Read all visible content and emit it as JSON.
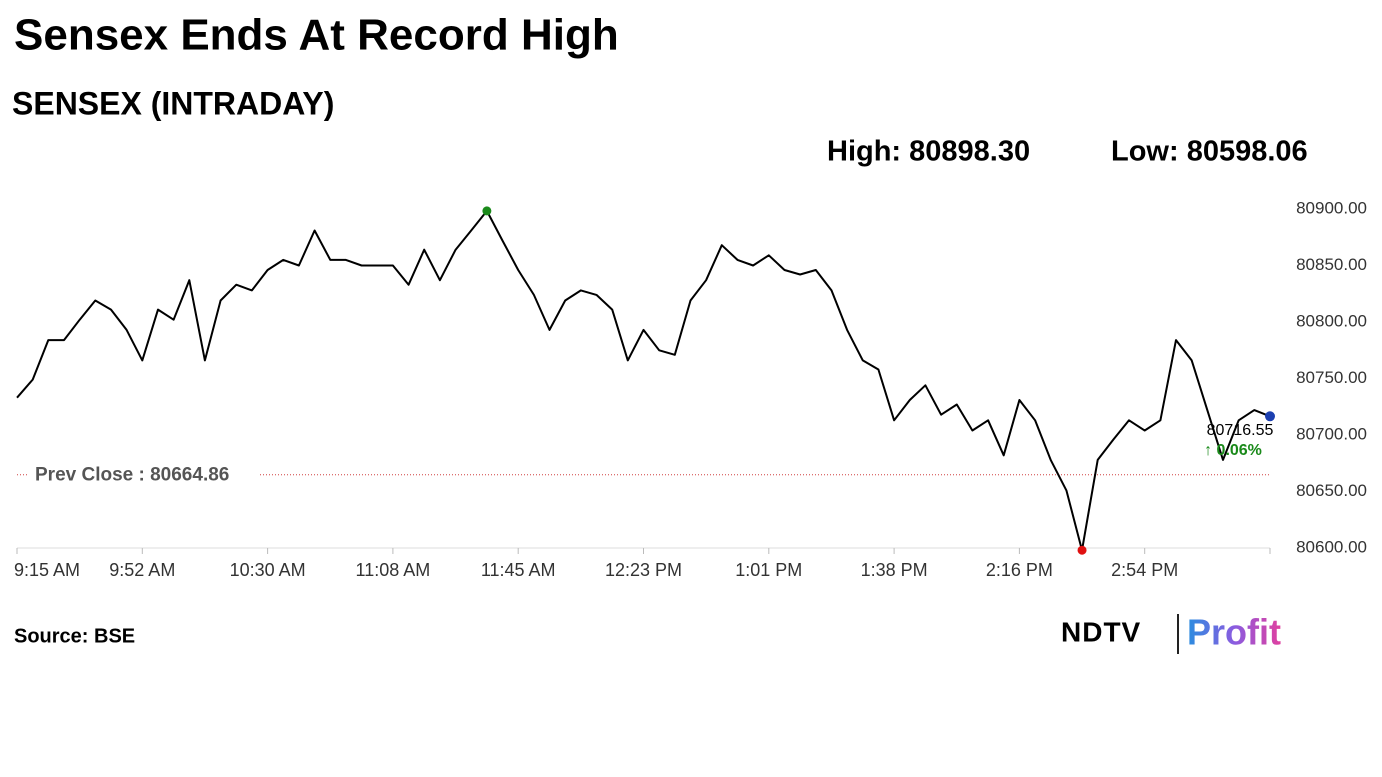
{
  "chart_data": {
    "type": "line",
    "title": "Sensex Ends At Record High",
    "subtitle": "SENSEX (INTRADAY)",
    "high_label": "High: 80898.30",
    "low_label": "Low: 80598.06",
    "categories": [
      "9:15 AM",
      null,
      null,
      null,
      null,
      null,
      null,
      null,
      "9:52 AM",
      null,
      null,
      null,
      null,
      null,
      null,
      null,
      "10:30 AM",
      null,
      null,
      null,
      null,
      null,
      null,
      null,
      "11:08 AM",
      null,
      null,
      null,
      null,
      null,
      null,
      null,
      "11:45 AM",
      null,
      null,
      null,
      null,
      null,
      null,
      null,
      "12:23 PM",
      null,
      null,
      null,
      null,
      null,
      null,
      null,
      "1:01 PM",
      null,
      null,
      null,
      null,
      null,
      null,
      null,
      "1:38 PM",
      null,
      null,
      null,
      null,
      null,
      null,
      null,
      "2:16 PM",
      null,
      null,
      null,
      null,
      null,
      null,
      null,
      "2:54 PM",
      null,
      null,
      null,
      null,
      null,
      null,
      null,
      null
    ],
    "values": [
      80733,
      80749,
      80784,
      80784,
      80802,
      80819,
      80811,
      80793,
      80766,
      80811,
      80802,
      80837,
      80766,
      80819,
      80833,
      80828,
      80846,
      80855,
      80850,
      80881,
      80855,
      80855,
      80850,
      80850,
      80850,
      80833,
      80864,
      80837,
      80864,
      80881,
      80898.3,
      80872,
      80846,
      80824,
      80793,
      80819,
      80828,
      80824,
      80811,
      80766,
      80793,
      80775,
      80771,
      80819,
      80837,
      80868,
      80855,
      80850,
      80859,
      80846,
      80842,
      80846,
      80828,
      80793,
      80766,
      80758,
      80713,
      80731,
      80744,
      80718,
      80727,
      80704,
      80713,
      80682,
      80731,
      80713,
      80678,
      80651,
      80598.06,
      80678,
      80696,
      80713,
      80704,
      80713,
      80784,
      80766,
      80722,
      80678,
      80713,
      80722,
      80716.55
    ],
    "color": "#000000",
    "high_color": "#1a8a1a",
    "low_color": "#e01010",
    "last_color": "#1c3fb0",
    "ylim": [
      80600,
      80900
    ],
    "yticks": [
      {
        "value": 80600,
        "label": "80600.00"
      },
      {
        "value": 80650,
        "label": "80650.00"
      },
      {
        "value": 80700,
        "label": "80700.00"
      },
      {
        "value": 80750,
        "label": "80750.00"
      },
      {
        "value": 80800,
        "label": "80800.00"
      },
      {
        "value": 80850,
        "label": "80850.00"
      },
      {
        "value": 80900,
        "label": "80900.00"
      }
    ],
    "prev_close": 80664.86,
    "prev_close_label": "Prev Close : 80664.86",
    "prev_close_color": "#d04040",
    "last_label": "80716.55",
    "change_label": "↑ 0.06%",
    "change_color": "#1a8a1a",
    "source": "Source: BSE",
    "brand": "NDTV",
    "brand_sub": "Profit"
  }
}
